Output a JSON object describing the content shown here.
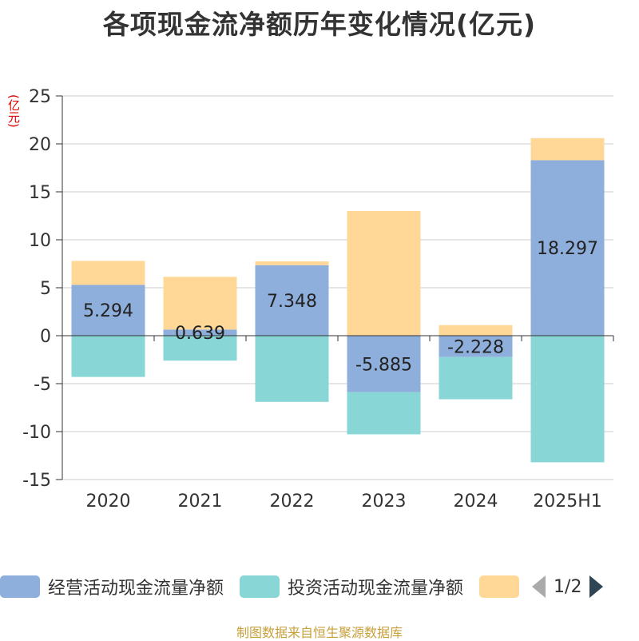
{
  "chart_data": {
    "type": "bar",
    "stacked": true,
    "title": "各项现金流净额历年变化情况(亿元)",
    "ylabel": "(亿元)",
    "categories": [
      "2020",
      "2021",
      "2022",
      "2023",
      "2024",
      "2025H1"
    ],
    "ylim": [
      -15,
      25
    ],
    "yticks": [
      25,
      20,
      15,
      10,
      5,
      0,
      -5,
      -10,
      -15
    ],
    "grid": true,
    "series": [
      {
        "name": "经营活动现金流量净额",
        "color": "#8eaedb",
        "values": [
          5.294,
          0.639,
          7.348,
          -5.885,
          -2.228,
          18.297
        ],
        "labels": [
          "5.294",
          "0.639",
          "7.348",
          "-5.885",
          "-2.228",
          "18.297"
        ]
      },
      {
        "name": "投资活动现金流量净额",
        "color": "#88d6d6",
        "values": [
          -4.3,
          -2.6,
          -6.9,
          -4.4,
          -4.4,
          -13.2
        ]
      },
      {
        "name": "",
        "color": "#ffd898",
        "values": [
          2.5,
          5.5,
          0.4,
          13.0,
          1.1,
          2.3
        ]
      }
    ]
  },
  "legend": {
    "page": "1/2"
  },
  "source": "制图数据来自恒生聚源数据库"
}
